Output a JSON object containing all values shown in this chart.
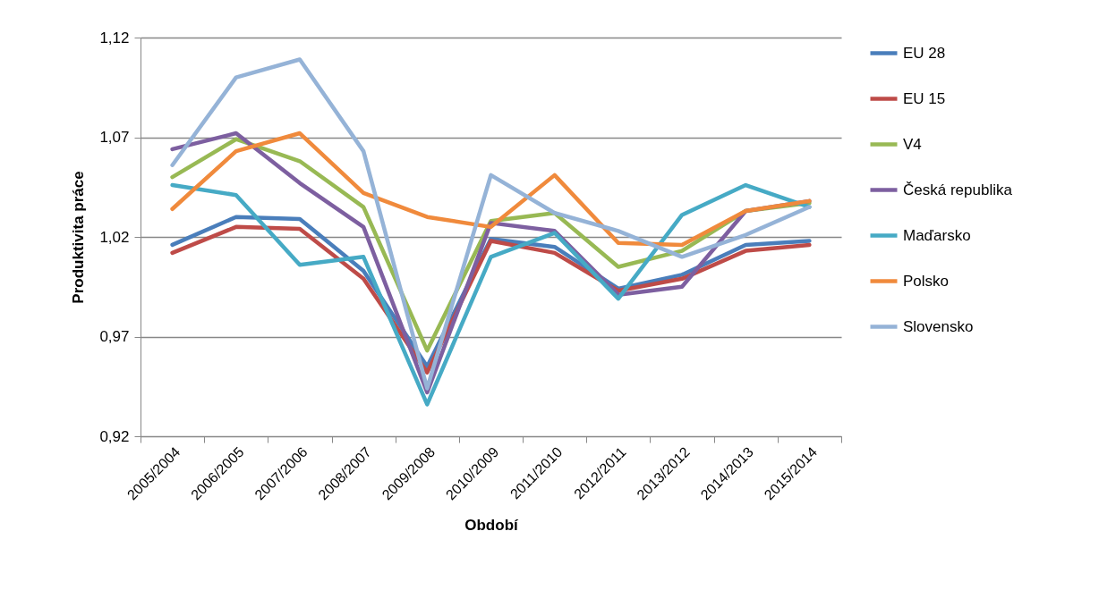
{
  "chart_data": {
    "type": "line",
    "xlabel": "Období",
    "ylabel": "Produktivita práce",
    "categories": [
      "2005/2004",
      "2006/2005",
      "2007/2006",
      "2008/2007",
      "2009/2008",
      "2010/2009",
      "2011/2010",
      "2012/2011",
      "2013/2012",
      "2014/2013",
      "2015/2014"
    ],
    "series": [
      {
        "name": "EU 28",
        "color": "#4a7ebb",
        "values": [
          1.016,
          1.03,
          1.029,
          1.003,
          0.955,
          1.019,
          1.015,
          0.994,
          1.001,
          1.016,
          1.018
        ]
      },
      {
        "name": "EU 15",
        "color": "#be4b48",
        "values": [
          1.012,
          1.025,
          1.024,
          0.999,
          0.952,
          1.018,
          1.012,
          0.993,
          0.999,
          1.013,
          1.016
        ]
      },
      {
        "name": "V4",
        "color": "#98b954",
        "values": [
          1.05,
          1.069,
          1.058,
          1.035,
          0.963,
          1.028,
          1.032,
          1.005,
          1.013,
          1.033,
          1.037
        ]
      },
      {
        "name": "Česká republika",
        "color": "#7d5fa0",
        "values": [
          1.064,
          1.072,
          1.047,
          1.025,
          0.942,
          1.027,
          1.023,
          0.991,
          0.995,
          1.033,
          1.038
        ]
      },
      {
        "name": "Maďarsko",
        "color": "#46aac5",
        "values": [
          1.046,
          1.041,
          1.006,
          1.01,
          0.936,
          1.01,
          1.022,
          0.989,
          1.031,
          1.046,
          1.035
        ]
      },
      {
        "name": "Polsko",
        "color": "#f08a3c",
        "values": [
          1.034,
          1.063,
          1.072,
          1.042,
          1.03,
          1.025,
          1.051,
          1.017,
          1.016,
          1.033,
          1.038
        ]
      },
      {
        "name": "Slovensko",
        "color": "#95b3d7",
        "values": [
          1.056,
          1.1,
          1.109,
          1.063,
          0.944,
          1.051,
          1.032,
          1.023,
          1.01,
          1.021,
          1.035
        ]
      }
    ],
    "ylim": [
      0.92,
      1.12
    ],
    "yticks": [
      {
        "value": 0.92,
        "label": "0,92"
      },
      {
        "value": 0.97,
        "label": "0,97"
      },
      {
        "value": 1.02,
        "label": "1,02"
      },
      {
        "value": 1.07,
        "label": "1,07"
      },
      {
        "value": 1.12,
        "label": "1,12"
      }
    ],
    "grid": "y",
    "legend": "right"
  }
}
